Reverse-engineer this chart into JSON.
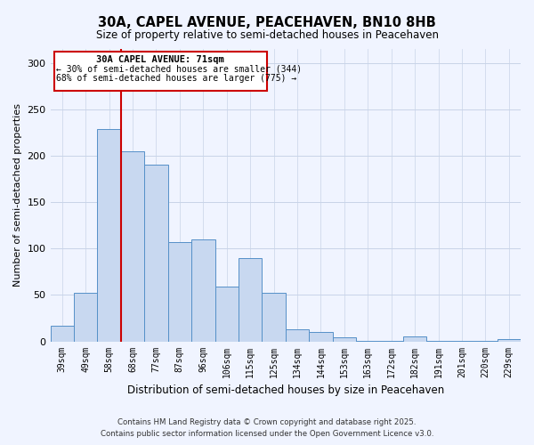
{
  "title": "30A, CAPEL AVENUE, PEACEHAVEN, BN10 8HB",
  "subtitle": "Size of property relative to semi-detached houses in Peacehaven",
  "xlabel": "Distribution of semi-detached houses by size in Peacehaven",
  "ylabel": "Number of semi-detached properties",
  "bar_labels": [
    "39sqm",
    "49sqm",
    "58sqm",
    "68sqm",
    "77sqm",
    "87sqm",
    "96sqm",
    "106sqm",
    "115sqm",
    "125sqm",
    "134sqm",
    "144sqm",
    "153sqm",
    "163sqm",
    "172sqm",
    "182sqm",
    "191sqm",
    "201sqm",
    "220sqm",
    "229sqm"
  ],
  "bar_values": [
    17,
    52,
    229,
    205,
    190,
    107,
    110,
    59,
    90,
    52,
    13,
    10,
    4,
    1,
    1,
    5,
    1,
    1,
    1,
    2
  ],
  "bar_color": "#c8d8f0",
  "bar_edge_color": "#5590c8",
  "vline_x_index": 3,
  "vline_color": "#cc0000",
  "annotation_title": "30A CAPEL AVENUE: 71sqm",
  "annotation_line1": "← 30% of semi-detached houses are smaller (344)",
  "annotation_line2": "68% of semi-detached houses are larger (775) →",
  "annotation_box_color": "#cc0000",
  "ylim": [
    0,
    315
  ],
  "yticks": [
    0,
    50,
    100,
    150,
    200,
    250,
    300
  ],
  "footer1": "Contains HM Land Registry data © Crown copyright and database right 2025.",
  "footer2": "Contains public sector information licensed under the Open Government Licence v3.0.",
  "bg_color": "#f0f4ff",
  "grid_color": "#c8d4e8"
}
